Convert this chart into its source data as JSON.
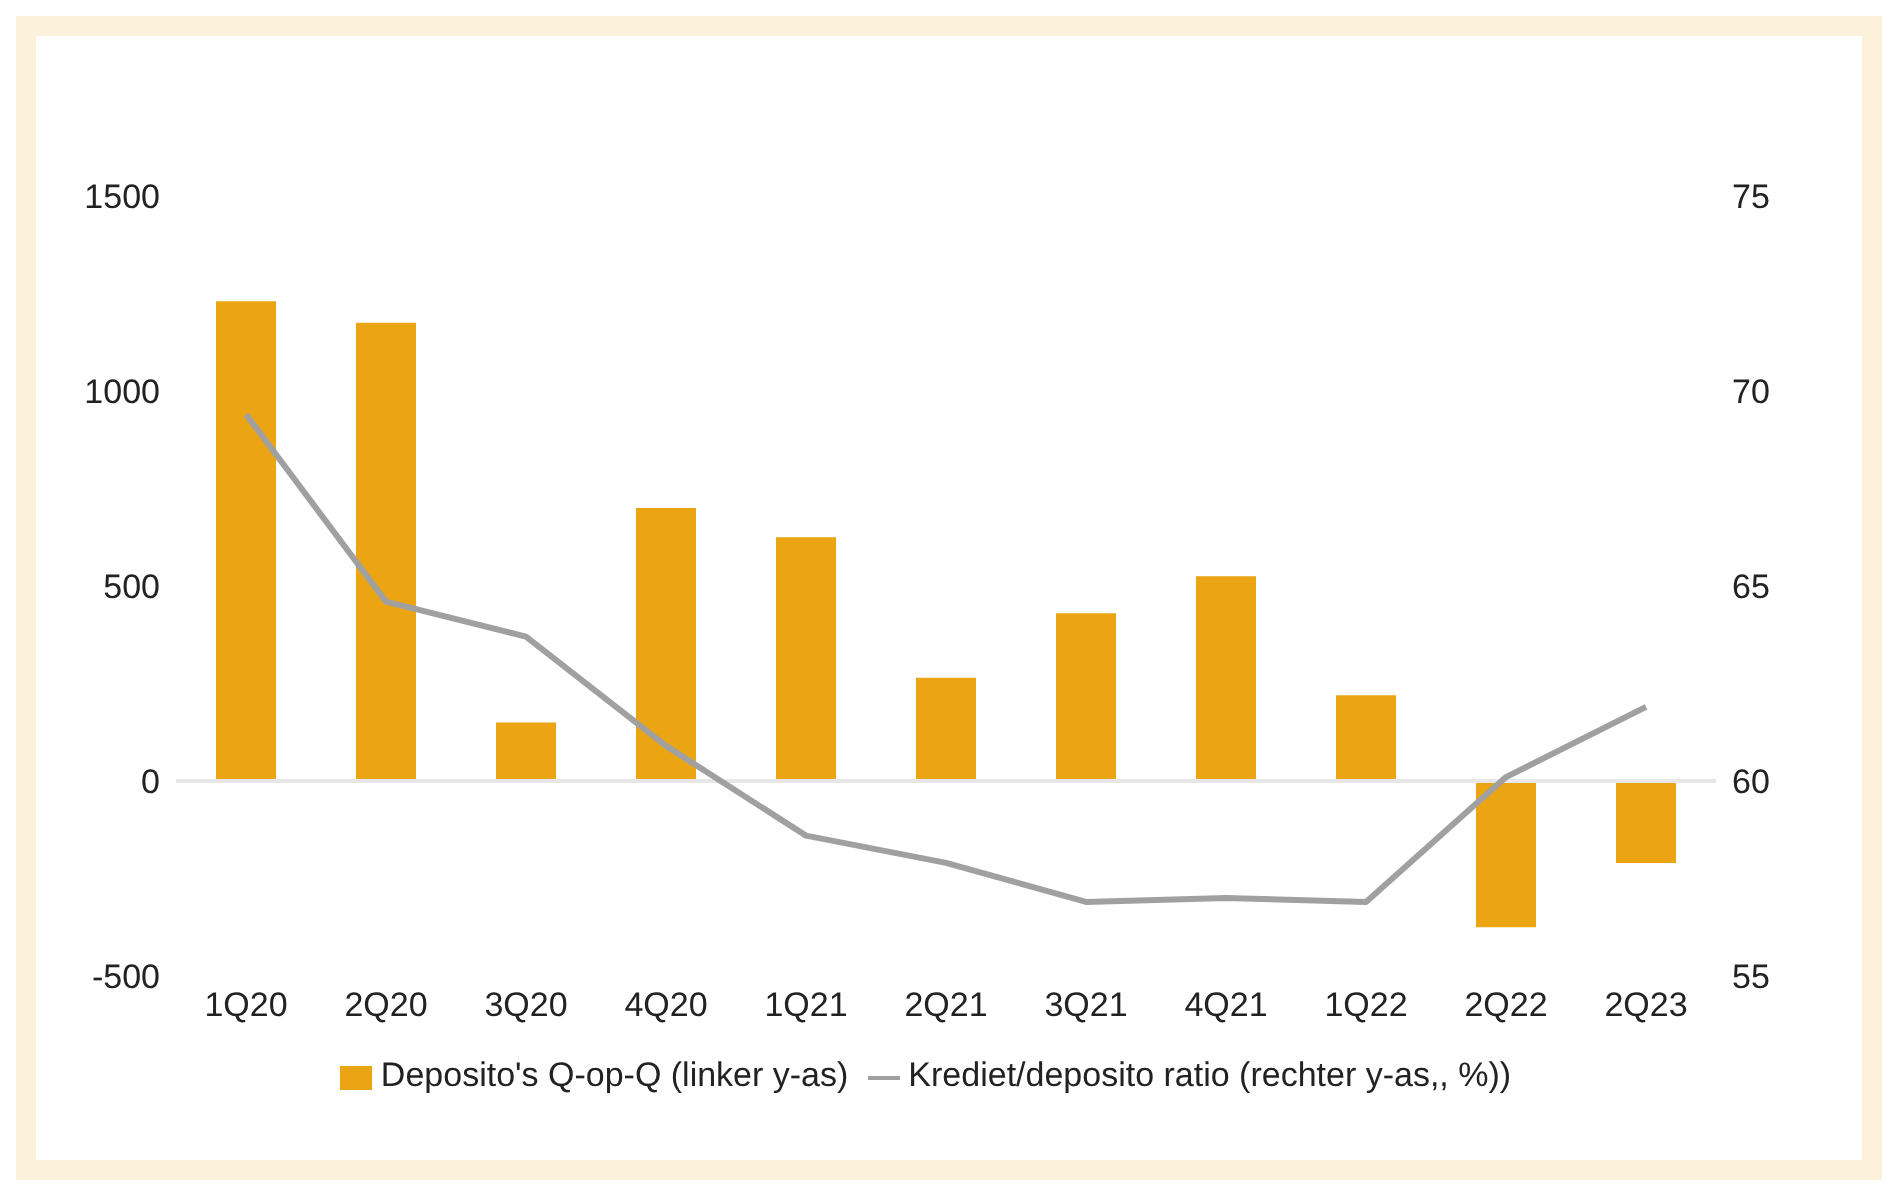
{
  "chart_data": {
    "type": "bar",
    "categories": [
      "1Q20",
      "2Q20",
      "3Q20",
      "4Q20",
      "1Q21",
      "2Q21",
      "3Q21",
      "4Q21",
      "1Q22",
      "2Q22",
      "2Q23"
    ],
    "series": [
      {
        "name": "Deposito's Q-op-Q (linker y-as)",
        "color": "#eba512",
        "values": [
          1230,
          1175,
          150,
          700,
          625,
          265,
          430,
          525,
          220,
          -375,
          -210
        ]
      },
      {
        "name": "Krediet/deposito ratio  (rechter  y-as,, %))",
        "type": "line",
        "axis": "y2",
        "color": "#a0a0a0",
        "values": [
          69.4,
          64.6,
          63.7,
          60.9,
          58.6,
          57.9,
          56.9,
          57.0,
          56.9,
          60.1,
          61.9
        ]
      }
    ],
    "ylim": [
      -500,
      1500
    ],
    "yticks": [
      -500,
      0,
      500,
      1000,
      1500
    ],
    "y2lim": [
      55,
      75
    ],
    "y2ticks": [
      55,
      60,
      65,
      70,
      75
    ],
    "ref_lines": [
      {
        "axis": "y",
        "value": 0,
        "color": "#e6e6e6"
      }
    ],
    "grid": false,
    "legend": "bottom",
    "marker": "none",
    "line_style": "solid"
  }
}
